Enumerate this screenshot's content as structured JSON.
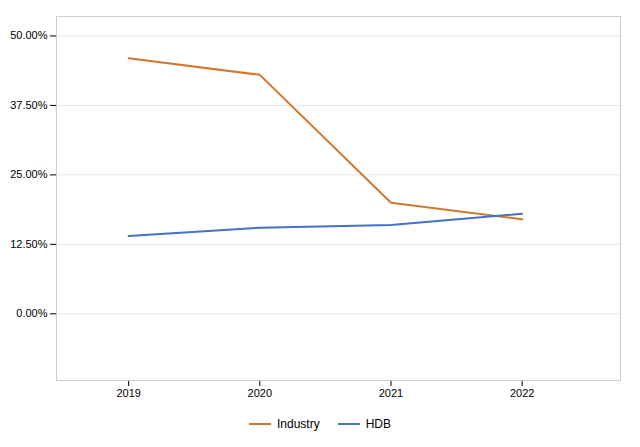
{
  "chart_data": {
    "type": "line",
    "x": [
      2019,
      2020,
      2021,
      2022
    ],
    "series": [
      {
        "name": "Industry",
        "color": "#D4762C",
        "values": [
          0.46,
          0.43,
          0.2,
          0.17
        ]
      },
      {
        "name": "HDB",
        "color": "#4472C4",
        "values": [
          0.14,
          0.155,
          0.16,
          0.18
        ]
      }
    ],
    "xlim": [
      2018.45,
      2022.75
    ],
    "xticks": [
      2019,
      2020,
      2021,
      2022
    ],
    "ylim": [
      -0.12,
      0.535
    ],
    "yticks": [
      {
        "value": 0.0,
        "label": "0.00%"
      },
      {
        "value": 0.125,
        "label": "12.50%"
      },
      {
        "value": 0.25,
        "label": "25.00%"
      },
      {
        "value": 0.375,
        "label": "37.50%"
      },
      {
        "value": 0.5,
        "label": "50.00%"
      }
    ],
    "grid": true,
    "legend": "bottom"
  }
}
